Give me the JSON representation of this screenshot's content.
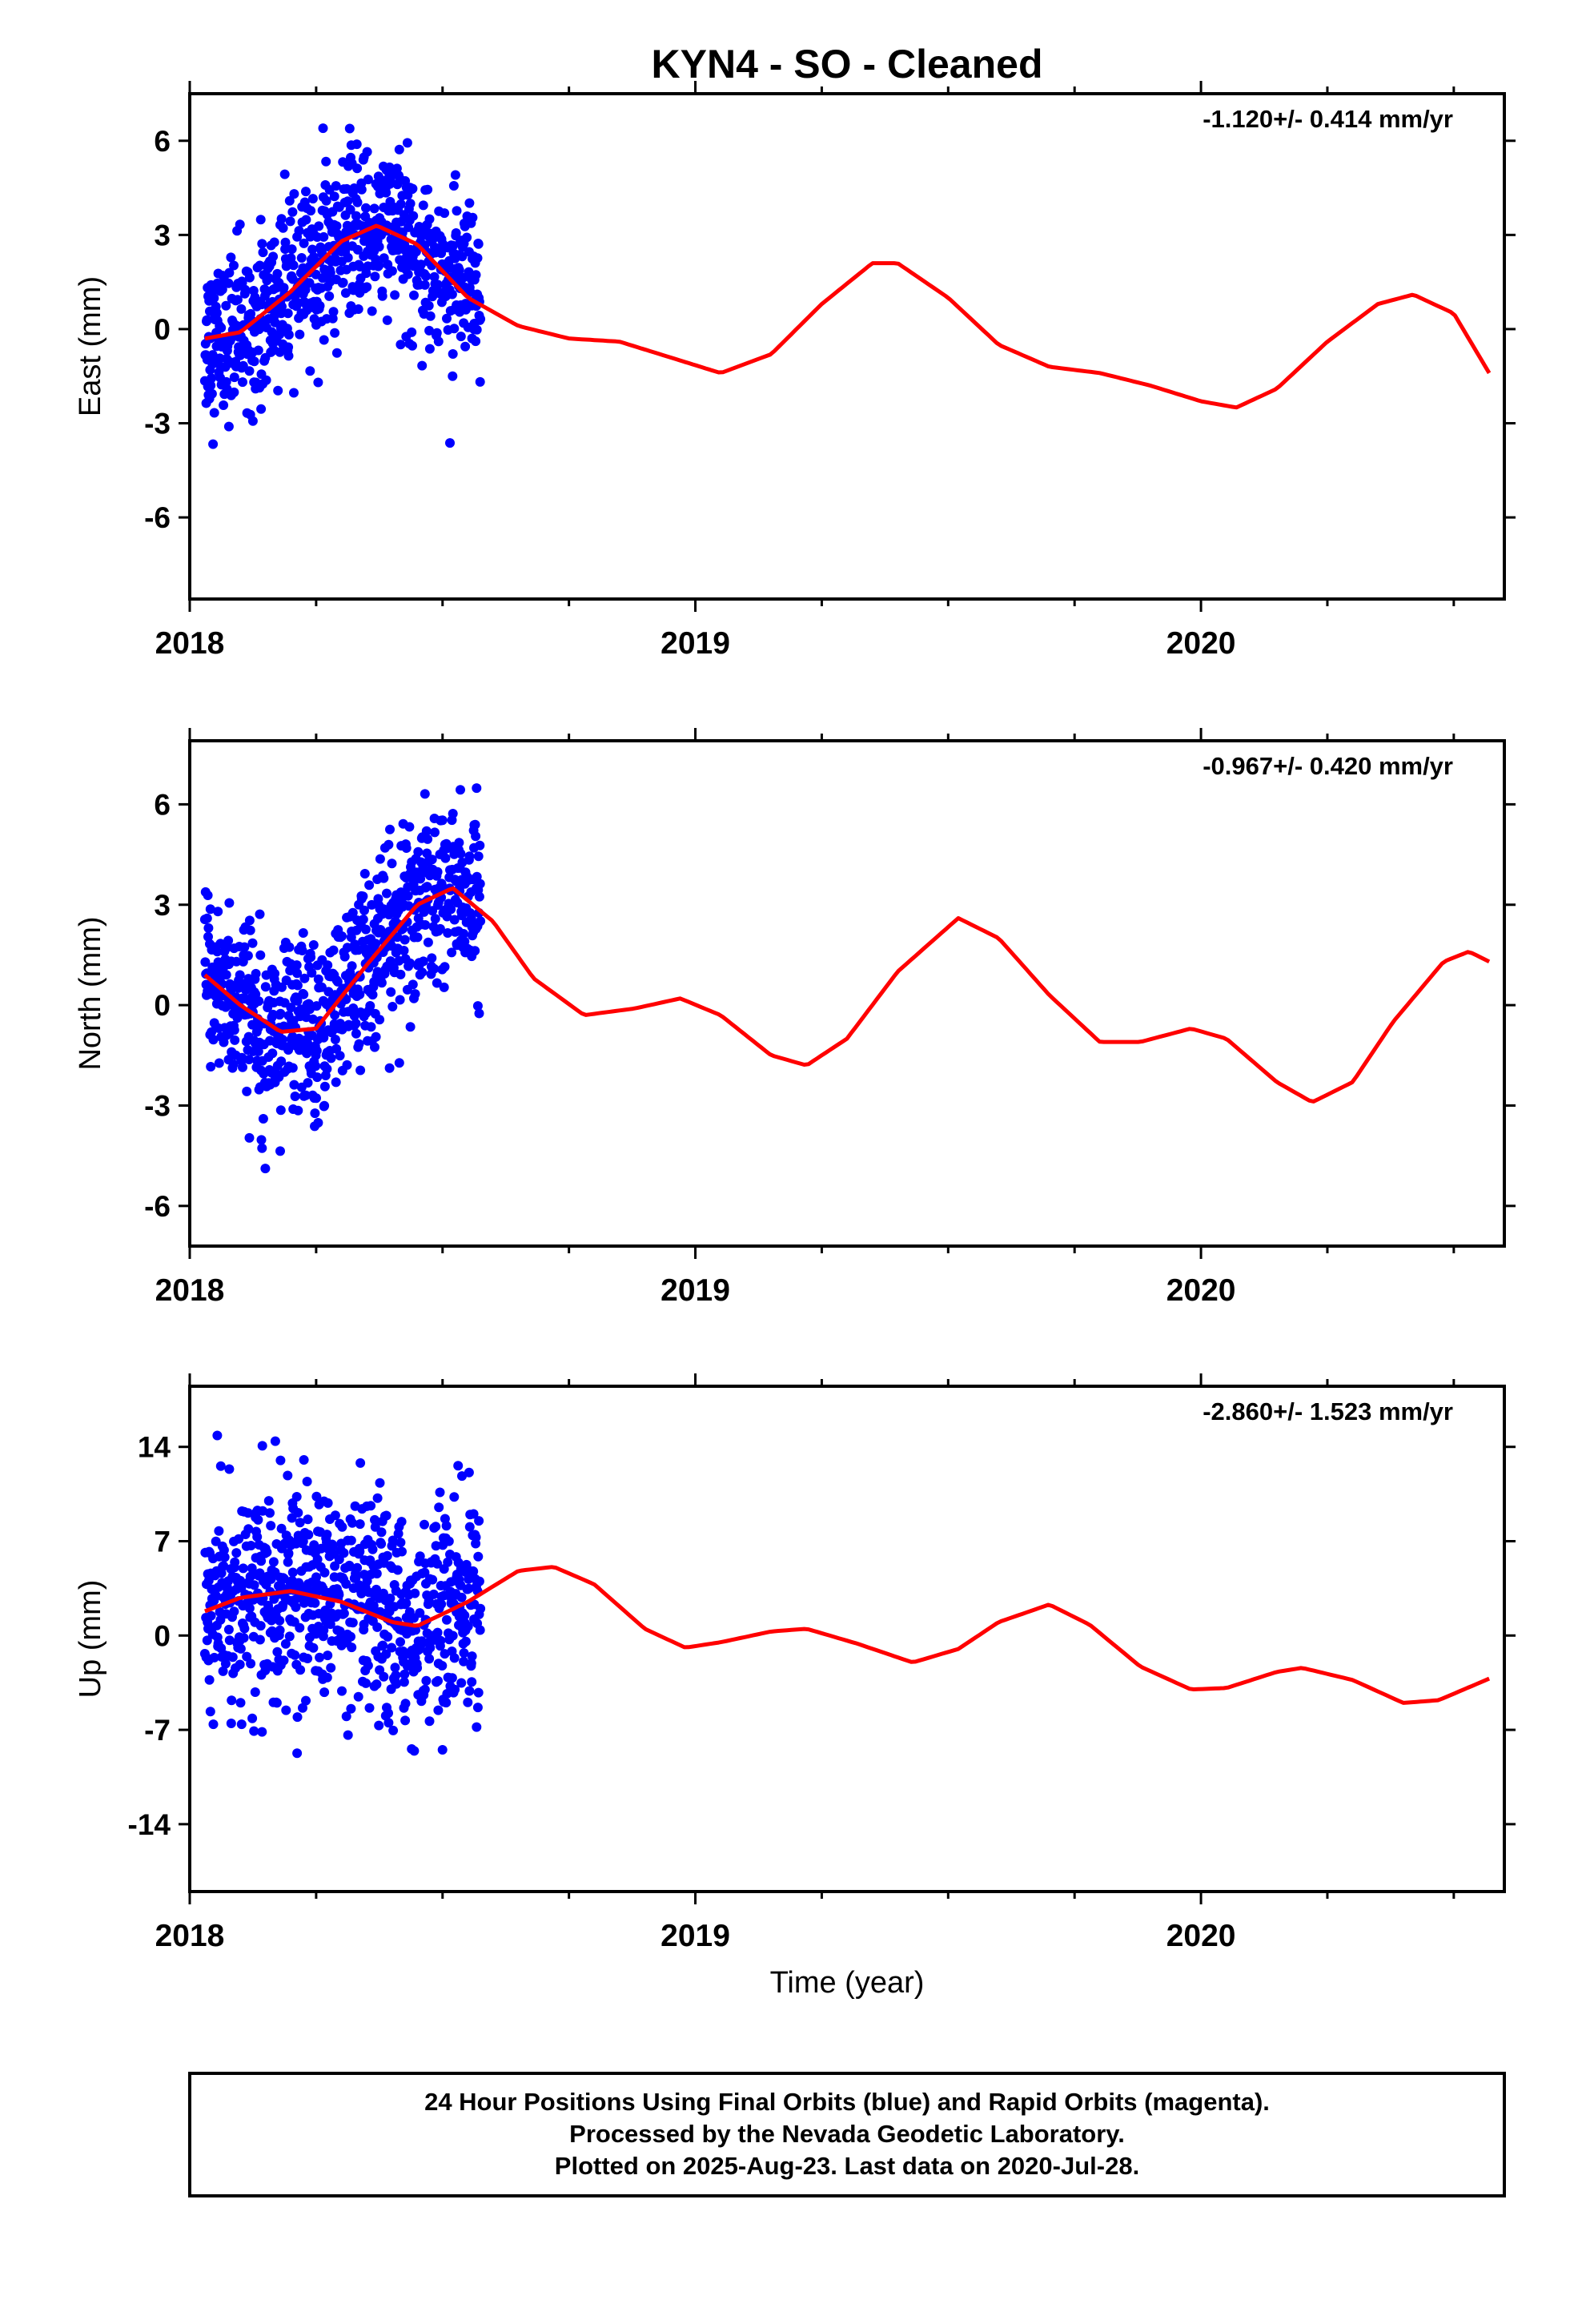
{
  "chart_data": {
    "title": "KYN4  - SO - Cleaned",
    "xlabel": "Time (year)",
    "x_ticks": [
      "2018",
      "2019",
      "2020"
    ],
    "xlim": [
      2018.0,
      2020.6
    ],
    "colors": {
      "points": "#0000ff",
      "model": "#ff0000",
      "frame": "#000000"
    },
    "grid": false,
    "panels": [
      {
        "type": "scatter",
        "ylabel": "East (mm)",
        "rate": "-1.120+/- 0.414 mm/yr",
        "ylim": [
          -8.6,
          7.5
        ],
        "y_ticks": [
          "6",
          "3",
          "0",
          "-3",
          "-6"
        ],
        "y_tick_values": [
          6,
          3,
          0,
          -3,
          -6
        ],
        "trend": [
          [
            2018.03,
            -0.3
          ],
          [
            2018.1,
            -0.1
          ],
          [
            2018.2,
            1.2
          ],
          [
            2018.3,
            2.8
          ],
          [
            2018.37,
            3.3
          ],
          [
            2018.45,
            2.7
          ],
          [
            2018.55,
            1.0
          ],
          [
            2018.65,
            0.1
          ],
          [
            2018.75,
            -0.3
          ],
          [
            2018.85,
            -0.4
          ],
          [
            2018.95,
            -0.9
          ],
          [
            2019.05,
            -1.4
          ],
          [
            2019.15,
            -0.8
          ],
          [
            2019.25,
            0.8
          ],
          [
            2019.35,
            2.1
          ],
          [
            2019.4,
            2.1
          ],
          [
            2019.5,
            1.0
          ],
          [
            2019.6,
            -0.5
          ],
          [
            2019.7,
            -1.2
          ],
          [
            2019.8,
            -1.4
          ],
          [
            2019.9,
            -1.8
          ],
          [
            2020.0,
            -2.3
          ],
          [
            2020.07,
            -2.5
          ],
          [
            2020.15,
            -1.9
          ],
          [
            2020.25,
            -0.4
          ],
          [
            2020.35,
            0.8
          ],
          [
            2020.42,
            1.1
          ],
          [
            2020.5,
            0.5
          ],
          [
            2020.57,
            -1.4
          ]
        ]
      },
      {
        "type": "scatter",
        "ylabel": "North (mm)",
        "rate": "-0.967+/- 0.420 mm/yr",
        "ylim": [
          -7.2,
          7.9
        ],
        "y_ticks": [
          "6",
          "3",
          "0",
          "-3",
          "-6"
        ],
        "y_tick_values": [
          6,
          3,
          0,
          -3,
          -6
        ],
        "trend": [
          [
            2018.03,
            0.9
          ],
          [
            2018.1,
            0.0
          ],
          [
            2018.18,
            -0.8
          ],
          [
            2018.25,
            -0.7
          ],
          [
            2018.35,
            1.2
          ],
          [
            2018.45,
            3.0
          ],
          [
            2018.52,
            3.5
          ],
          [
            2018.6,
            2.5
          ],
          [
            2018.68,
            0.8
          ],
          [
            2018.78,
            -0.3
          ],
          [
            2018.88,
            -0.1
          ],
          [
            2018.97,
            0.2
          ],
          [
            2019.05,
            -0.3
          ],
          [
            2019.15,
            -1.5
          ],
          [
            2019.22,
            -1.8
          ],
          [
            2019.3,
            -1.0
          ],
          [
            2019.4,
            1.0
          ],
          [
            2019.52,
            2.6
          ],
          [
            2019.6,
            2.0
          ],
          [
            2019.7,
            0.3
          ],
          [
            2019.8,
            -1.1
          ],
          [
            2019.88,
            -1.1
          ],
          [
            2019.98,
            -0.7
          ],
          [
            2020.05,
            -1.0
          ],
          [
            2020.15,
            -2.3
          ],
          [
            2020.22,
            -2.9
          ],
          [
            2020.3,
            -2.3
          ],
          [
            2020.38,
            -0.5
          ],
          [
            2020.48,
            1.3
          ],
          [
            2020.53,
            1.6
          ],
          [
            2020.57,
            1.3
          ]
        ]
      },
      {
        "type": "scatter",
        "ylabel": "Up (mm)",
        "rate": "-2.860+/- 1.523 mm/yr",
        "ylim": [
          -19,
          18.5
        ],
        "y_ticks": [
          "14",
          "7",
          "0",
          "-7",
          "-14"
        ],
        "y_tick_values": [
          14,
          7,
          0,
          -7,
          -14
        ],
        "trend": [
          [
            2018.03,
            1.8
          ],
          [
            2018.1,
            2.8
          ],
          [
            2018.2,
            3.3
          ],
          [
            2018.3,
            2.5
          ],
          [
            2018.4,
            1.0
          ],
          [
            2018.45,
            0.7
          ],
          [
            2018.55,
            2.5
          ],
          [
            2018.65,
            4.8
          ],
          [
            2018.72,
            5.1
          ],
          [
            2018.8,
            3.8
          ],
          [
            2018.9,
            0.5
          ],
          [
            2018.98,
            -0.9
          ],
          [
            2019.05,
            -0.5
          ],
          [
            2019.15,
            0.3
          ],
          [
            2019.22,
            0.5
          ],
          [
            2019.32,
            -0.6
          ],
          [
            2019.43,
            -2.0
          ],
          [
            2019.52,
            -1.0
          ],
          [
            2019.6,
            1.0
          ],
          [
            2019.7,
            2.3
          ],
          [
            2019.78,
            0.8
          ],
          [
            2019.88,
            -2.3
          ],
          [
            2019.98,
            -4.0
          ],
          [
            2020.05,
            -3.9
          ],
          [
            2020.15,
            -2.7
          ],
          [
            2020.2,
            -2.4
          ],
          [
            2020.3,
            -3.3
          ],
          [
            2020.4,
            -5.0
          ],
          [
            2020.47,
            -4.8
          ],
          [
            2020.57,
            -3.2
          ]
        ]
      }
    ]
  },
  "footer": {
    "lines": [
      "24 Hour Positions Using Final Orbits (blue) and Rapid Orbits (magenta).",
      "Processed by the Nevada Geodetic Laboratory.",
      "Plotted on 2025-Aug-23. Last data on 2020-Jul-28."
    ]
  }
}
